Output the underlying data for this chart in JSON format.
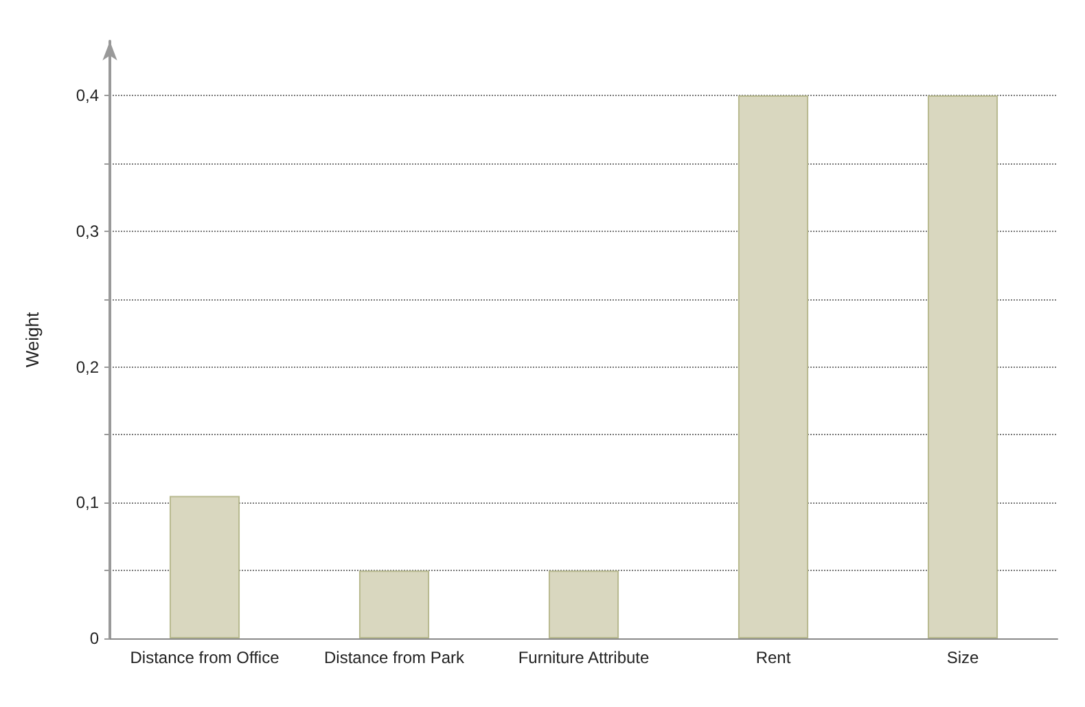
{
  "chart_data": {
    "type": "bar",
    "ylabel": "Weight",
    "categories": [
      "Distance from Office",
      "Distance from Park",
      "Furniture Attribute",
      "Rent",
      "Size"
    ],
    "values": [
      0.105,
      0.05,
      0.05,
      0.4,
      0.4
    ],
    "color": "#d9d7bf",
    "ylim": [
      0,
      0.44
    ],
    "yticks": [
      0,
      {
        "value": 0.05,
        "label": null
      },
      {
        "value": 0.1,
        "label": "0,1"
      },
      {
        "value": 0.15,
        "label": null
      },
      {
        "value": 0.2,
        "label": "0,2"
      },
      {
        "value": 0.25,
        "label": null
      },
      {
        "value": 0.3,
        "label": "0,3"
      },
      {
        "value": 0.35,
        "label": null
      },
      {
        "value": 0.4,
        "label": "0,4"
      }
    ],
    "grid": "y"
  }
}
